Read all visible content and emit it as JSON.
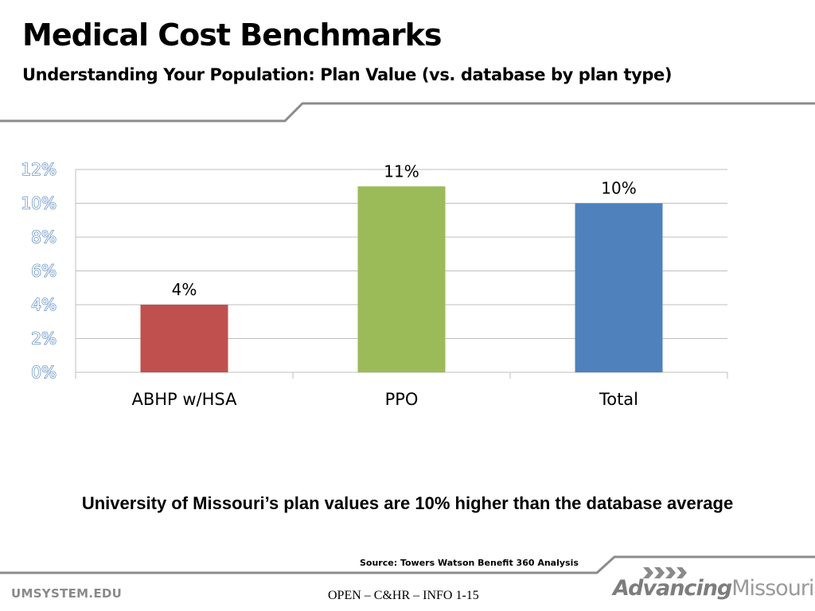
{
  "slide": {
    "title": "Medical Cost Benchmarks",
    "subtitle": "Understanding Your Population: Plan Value (vs. database by plan type)",
    "finding": "University of Missouri’s plan values are 10% higher than the database average",
    "source": "Source:  Towers Watson Benefit 360 Analysis",
    "footer_left": "UMSYSTEM.EDU",
    "footer_center": "OPEN – C&HR – INFO 1-15",
    "logo": {
      "word1": "Advancing",
      "word2": "Missouri",
      "icon": "chevrons-icon"
    }
  },
  "colors": {
    "rule": "#8c8c8c",
    "tick_label": "#4f81bd",
    "grid": "#bfbfbf",
    "bars": [
      "#c0504d",
      "#9bbb59",
      "#4f81bd"
    ]
  },
  "chart_data": {
    "type": "bar",
    "categories": [
      "ABHP w/HSA",
      "PPO",
      "Total"
    ],
    "values": [
      4,
      11,
      10
    ],
    "data_labels": [
      "4%",
      "11%",
      "10%"
    ],
    "yticks": [
      "0%",
      "2%",
      "4%",
      "6%",
      "8%",
      "10%",
      "12%"
    ],
    "ylim": [
      0,
      12
    ],
    "ystep": 2,
    "grid": true,
    "legend": "none",
    "title": "",
    "xlabel": "",
    "ylabel": ""
  }
}
